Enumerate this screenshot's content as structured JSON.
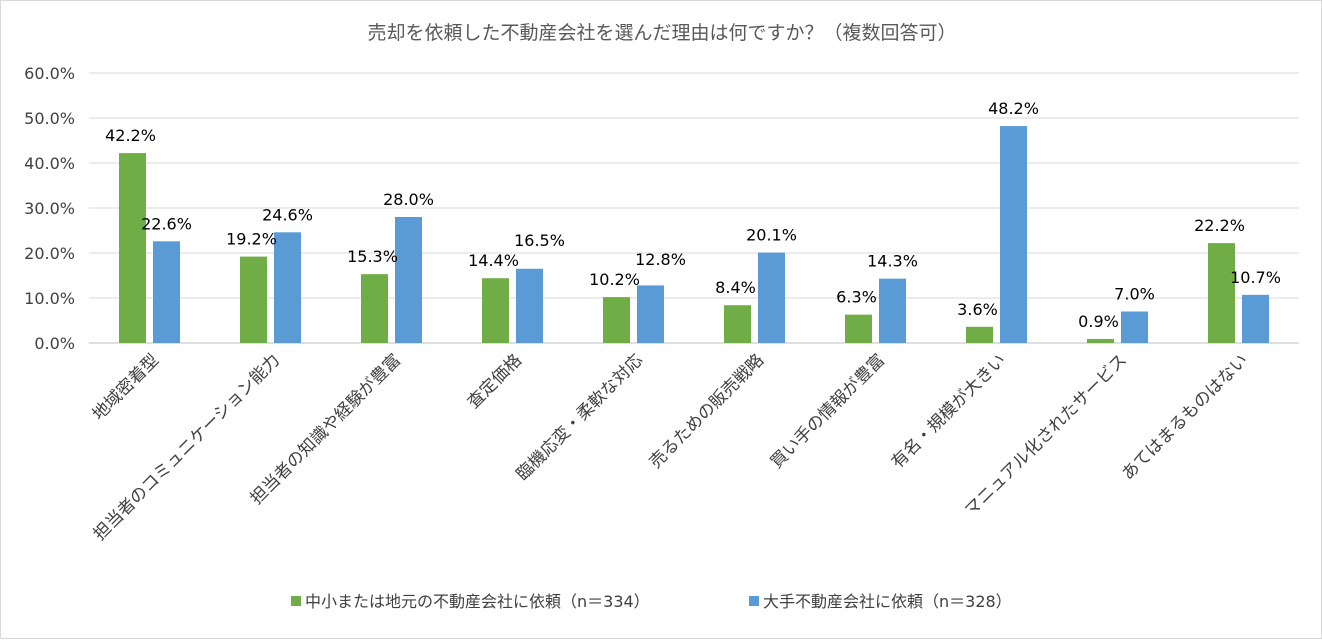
{
  "chart_data": {
    "type": "bar",
    "title": "売却を依頼した不動産会社を選んだ理由は何ですか？（複数回答可）",
    "categories": [
      "地域密着型",
      "担当者のコミュニケーション能力",
      "担当者の知識や経験が豊富",
      "査定価格",
      "臨機応変・柔軟な対応",
      "売るための販売戦略",
      "買い手の情報が豊富",
      "有名・規模が大きい",
      "マニュアル化されたサービス",
      "あてはまるものはない"
    ],
    "series": [
      {
        "name": "中小または地元の不動産会社に依頼（n＝334）",
        "color": "#70ad47",
        "values": [
          42.2,
          19.2,
          15.3,
          14.4,
          10.2,
          8.4,
          6.3,
          3.6,
          0.9,
          22.2
        ],
        "labels": [
          "42.2%",
          "19.2%",
          "15.3%",
          "14.4%",
          "10.2%",
          "8.4%",
          "6.3%",
          "3.6%",
          "0.9%",
          "22.2%"
        ]
      },
      {
        "name": "大手不動産会社に依頼（n＝328）",
        "color": "#5b9bd5",
        "values": [
          22.6,
          24.6,
          28.0,
          16.5,
          12.8,
          20.1,
          14.3,
          48.2,
          7.0,
          10.7
        ],
        "labels": [
          "22.6%",
          "24.6%",
          "28.0%",
          "16.5%",
          "12.8%",
          "20.1%",
          "14.3%",
          "48.2%",
          "7.0%",
          "10.7%"
        ]
      }
    ],
    "ylim": [
      0,
      60
    ],
    "yticks": [
      0,
      10,
      20,
      30,
      40,
      50,
      60
    ],
    "ytick_labels": [
      "0.0%",
      "10.0%",
      "20.0%",
      "30.0%",
      "40.0%",
      "50.0%",
      "60.0%"
    ],
    "grid": true,
    "legend_position": "bottom"
  }
}
